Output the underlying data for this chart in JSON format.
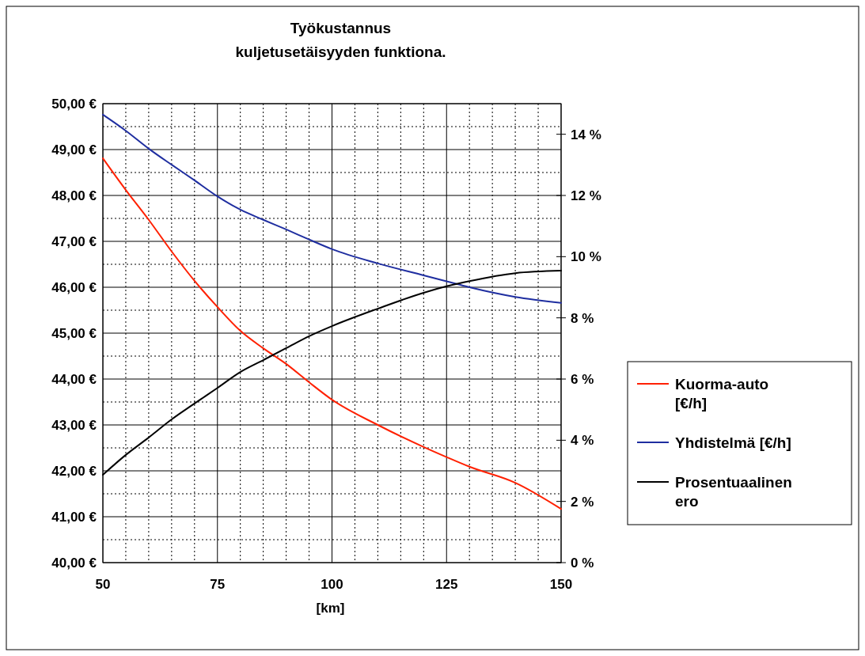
{
  "chart_data": {
    "type": "line",
    "title": "Työkustannus\nkuljetusetäisyyden funktiona.",
    "xlabel": "[km]",
    "x": [
      50,
      55,
      60,
      65,
      70,
      75,
      80,
      85,
      90,
      95,
      100,
      110,
      120,
      125,
      130,
      140,
      150
    ],
    "series": [
      {
        "name": "Kuorma-auto [€/h]",
        "color": "#ff2000",
        "values": [
          48.81,
          48.12,
          47.47,
          46.78,
          46.14,
          45.57,
          45.05,
          44.67,
          44.33,
          43.93,
          43.55,
          43.0,
          42.52,
          42.3,
          42.09,
          41.74,
          41.17
        ]
      },
      {
        "name": "Yhdistelmä [€/h]",
        "color": "#1f2ea0",
        "values": [
          49.76,
          49.41,
          49.02,
          48.67,
          48.33,
          47.98,
          47.69,
          47.47,
          47.26,
          47.04,
          46.83,
          46.52,
          46.26,
          46.13,
          46.0,
          45.79,
          45.66
        ]
      },
      {
        "name": "Prosentuaalinen ero",
        "color": "#000000",
        "axis": "y2",
        "values": [
          2.87,
          3.52,
          4.09,
          4.68,
          5.2,
          5.71,
          6.23,
          6.62,
          7.01,
          7.4,
          7.73,
          8.3,
          8.82,
          9.03,
          9.2,
          9.46,
          9.54
        ]
      }
    ],
    "xlim": [
      50,
      150
    ],
    "xticks": [
      50,
      {
        "value": 55,
        "label": null
      },
      {
        "value": 60,
        "label": null
      },
      {
        "value": 65,
        "label": null
      },
      {
        "value": 70,
        "label": null
      },
      75,
      {
        "value": 80,
        "label": null
      },
      {
        "value": 85,
        "label": null
      },
      {
        "value": 90,
        "label": null
      },
      {
        "value": 95,
        "label": null
      },
      100,
      {
        "value": 105,
        "label": null
      },
      {
        "value": 110,
        "label": null
      },
      {
        "value": 115,
        "label": null
      },
      {
        "value": 120,
        "label": null
      },
      125,
      {
        "value": 130,
        "label": null
      },
      {
        "value": 135,
        "label": null
      },
      {
        "value": 140,
        "label": null
      },
      {
        "value": 145,
        "label": null
      },
      150
    ],
    "ylim": [
      40,
      50
    ],
    "yticks": [
      {
        "value": 40,
        "label": "40,00 €"
      },
      {
        "value": 40.5,
        "label": null
      },
      {
        "value": 41,
        "label": "41,00 €"
      },
      {
        "value": 41.5,
        "label": null
      },
      {
        "value": 42,
        "label": "42,00 €"
      },
      {
        "value": 42.5,
        "label": null
      },
      {
        "value": 43,
        "label": "43,00 €"
      },
      {
        "value": 43.5,
        "label": null
      },
      {
        "value": 44,
        "label": "44,00 €"
      },
      {
        "value": 44.5,
        "label": null
      },
      {
        "value": 45,
        "label": "45,00 €"
      },
      {
        "value": 45.5,
        "label": null
      },
      {
        "value": 46,
        "label": "46,00 €"
      },
      {
        "value": 46.5,
        "label": null
      },
      {
        "value": 47,
        "label": "47,00 €"
      },
      {
        "value": 47.5,
        "label": null
      },
      {
        "value": 48,
        "label": "48,00 €"
      },
      {
        "value": 48.5,
        "label": null
      },
      {
        "value": 49,
        "label": "49,00 €"
      },
      {
        "value": 49.5,
        "label": null
      },
      {
        "value": 50,
        "label": "50,00 €"
      }
    ],
    "y2lim": [
      0,
      15
    ],
    "y2ticks": [
      {
        "value": 0,
        "label": "0 %"
      },
      {
        "value": 2,
        "label": "2 %"
      },
      {
        "value": 4,
        "label": "4 %"
      },
      {
        "value": 6,
        "label": "6 %"
      },
      {
        "value": 8,
        "label": "8 %"
      },
      {
        "value": 10,
        "label": "10 %"
      },
      {
        "value": 12,
        "label": "12 %"
      },
      {
        "value": 14,
        "label": "14 %"
      }
    ],
    "grid": true,
    "legend": "right",
    "marker": "none",
    "line_style": "solid"
  }
}
